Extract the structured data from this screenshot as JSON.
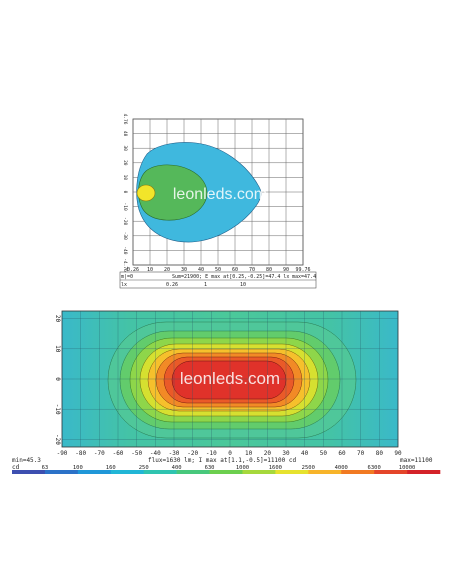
{
  "watermark": "leonleds.com",
  "chart_data": [
    {
      "type": "heatmap",
      "title": "",
      "x_ticks": [
        "0.26",
        "10",
        "20",
        "30",
        "40",
        "50",
        "60",
        "70",
        "80",
        "90",
        "99.76"
      ],
      "y_ticks": [
        "4.76",
        "40",
        "30",
        "20",
        "10",
        "0",
        "-10",
        "-20",
        "-30",
        "-40",
        "-4.76"
      ],
      "corner_label": "m|=0",
      "stats": "Sum=21900; E max at[0.25,-0.25]=47.4 lx",
      "max_label": "max=47.4",
      "legend_label": "lx",
      "legend_values": [
        "0.26",
        "1",
        "10"
      ],
      "contour_colors": [
        "#3fb8de",
        "#55b85a",
        "#f2e52a"
      ]
    },
    {
      "type": "heatmap",
      "title": "",
      "x_ticks": [
        "-90",
        "-80",
        "-70",
        "-60",
        "-50",
        "-40",
        "-30",
        "-20",
        "-10",
        "0",
        "10",
        "20",
        "30",
        "40",
        "50",
        "60",
        "70",
        "80",
        "90"
      ],
      "y_ticks": [
        "20",
        "10",
        "0",
        "-10",
        "-20"
      ],
      "min_label": "min=45.3",
      "max_label": "max=11100",
      "stats": "flux=1630 lm; I max at[1.1,-0.5]=11100 cd",
      "unit_label": "cd",
      "scale_values": [
        "63",
        "100",
        "160",
        "250",
        "400",
        "630",
        "1000",
        "1600",
        "2500",
        "4000",
        "6300",
        "10000"
      ],
      "scale_colors": [
        "#3d4fb0",
        "#2b72c8",
        "#1f97d8",
        "#21b6d6",
        "#2fc4b0",
        "#48c87c",
        "#6ccf4e",
        "#a6d83c",
        "#e6e22e",
        "#f7b42a",
        "#f17a22",
        "#e4452a",
        "#d42229"
      ]
    }
  ]
}
